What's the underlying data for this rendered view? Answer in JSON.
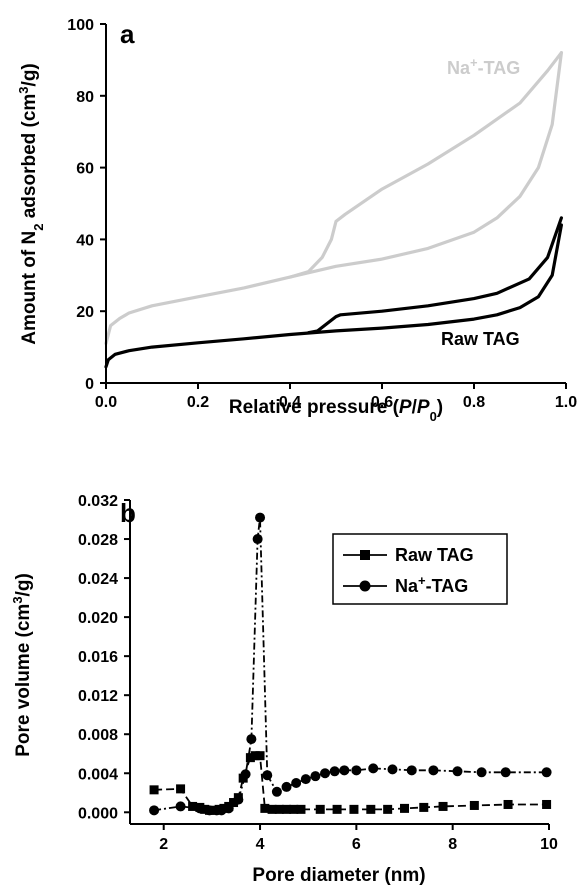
{
  "chart_data": [
    {
      "type": "line",
      "panel_label": "a",
      "xlabel_parts": [
        "Relative pressure (",
        "P",
        "/",
        "P",
        "0",
        ")"
      ],
      "ylabel_parts": [
        "Amount of N",
        "2",
        " adsorbed (cm",
        "3",
        "/g)"
      ],
      "xlim": [
        0.0,
        1.0
      ],
      "ylim": [
        0,
        100
      ],
      "xticks": [
        "0.0",
        "0.2",
        "0.4",
        "0.6",
        "0.8",
        "1.0"
      ],
      "yticks": [
        "0",
        "20",
        "40",
        "60",
        "80",
        "100"
      ],
      "grid": false,
      "series": [
        {
          "name": "Na+-TAG",
          "label_parts": [
            "Na",
            "+",
            "-TAG"
          ],
          "color": "#cccccc",
          "adsorption": [
            [
              0.0,
              11
            ],
            [
              0.01,
              16
            ],
            [
              0.03,
              18
            ],
            [
              0.05,
              19.5
            ],
            [
              0.1,
              21.5
            ],
            [
              0.2,
              24
            ],
            [
              0.3,
              26.5
            ],
            [
              0.4,
              29.5
            ],
            [
              0.45,
              31
            ],
            [
              0.5,
              32.5
            ],
            [
              0.6,
              34.5
            ],
            [
              0.7,
              37.5
            ],
            [
              0.8,
              42
            ],
            [
              0.85,
              46
            ],
            [
              0.9,
              52
            ],
            [
              0.94,
              60
            ],
            [
              0.97,
              72
            ],
            [
              0.99,
              92
            ]
          ],
          "desorption": [
            [
              0.99,
              92
            ],
            [
              0.96,
              87
            ],
            [
              0.9,
              78
            ],
            [
              0.8,
              69
            ],
            [
              0.7,
              61
            ],
            [
              0.6,
              54
            ],
            [
              0.52,
              47
            ],
            [
              0.5,
              45
            ],
            [
              0.49,
              40
            ],
            [
              0.47,
              35
            ],
            [
              0.44,
              31
            ],
            [
              0.4,
              29.5
            ]
          ]
        },
        {
          "name": "Raw TAG",
          "label_parts": [
            "Raw TAG"
          ],
          "color": "#000000",
          "adsorption": [
            [
              0.0,
              4.5
            ],
            [
              0.005,
              6.5
            ],
            [
              0.02,
              8
            ],
            [
              0.05,
              9
            ],
            [
              0.1,
              10
            ],
            [
              0.2,
              11.2
            ],
            [
              0.3,
              12.3
            ],
            [
              0.4,
              13.5
            ],
            [
              0.5,
              14.5
            ],
            [
              0.6,
              15.3
            ],
            [
              0.7,
              16.3
            ],
            [
              0.8,
              17.8
            ],
            [
              0.85,
              19
            ],
            [
              0.9,
              21
            ],
            [
              0.94,
              24
            ],
            [
              0.97,
              30
            ],
            [
              0.99,
              44
            ]
          ],
          "desorption": [
            [
              0.99,
              46
            ],
            [
              0.96,
              35
            ],
            [
              0.92,
              29
            ],
            [
              0.85,
              25
            ],
            [
              0.8,
              23.5
            ],
            [
              0.7,
              21.5
            ],
            [
              0.6,
              20
            ],
            [
              0.51,
              19
            ],
            [
              0.5,
              18.5
            ],
            [
              0.48,
              16.5
            ],
            [
              0.46,
              14.5
            ],
            [
              0.44,
              14
            ]
          ]
        }
      ]
    },
    {
      "type": "line",
      "panel_label": "b",
      "xlabel_parts": [
        "Pore diameter (nm)"
      ],
      "ylabel_parts": [
        "Pore volume (cm",
        "3",
        "/g)"
      ],
      "xlim": [
        1.3,
        10
      ],
      "ylim": [
        -0.0012,
        0.032
      ],
      "xticks": [
        "2",
        "4",
        "6",
        "8",
        "10"
      ],
      "yticks": [
        "0.000",
        "0.004",
        "0.008",
        "0.012",
        "0.016",
        "0.020",
        "0.024",
        "0.028",
        "0.032"
      ],
      "grid": false,
      "legend_position": "top-right",
      "series": [
        {
          "name": "Raw TAG",
          "label_parts": [
            "Raw TAG"
          ],
          "marker": "square",
          "x": [
            1.8,
            2.35,
            2.6,
            2.75,
            2.85,
            2.95,
            3.05,
            3.15,
            3.25,
            3.35,
            3.45,
            3.55,
            3.65,
            3.8,
            3.9,
            4.0,
            4.1,
            4.25,
            4.4,
            4.55,
            4.7,
            4.85,
            5.25,
            5.6,
            5.95,
            6.3,
            6.65,
            7.0,
            7.4,
            7.8,
            8.45,
            9.15,
            9.95
          ],
          "y": [
            0.0023,
            0.0024,
            0.0006,
            0.0005,
            0.0003,
            0.0002,
            0.0002,
            0.0003,
            0.0004,
            0.0006,
            0.001,
            0.0015,
            0.0035,
            0.0056,
            0.0058,
            0.0058,
            0.0004,
            0.0003,
            0.0003,
            0.0003,
            0.0003,
            0.0003,
            0.0003,
            0.0003,
            0.0003,
            0.0003,
            0.0003,
            0.0004,
            0.0005,
            0.0006,
            0.0007,
            0.0008,
            0.0008
          ]
        },
        {
          "name": "Na+-TAG",
          "label_parts": [
            "Na",
            "+",
            "-TAG"
          ],
          "marker": "circle",
          "x": [
            1.8,
            2.35,
            2.75,
            2.95,
            3.1,
            3.2,
            3.35,
            3.55,
            3.7,
            3.82,
            3.95,
            4.0,
            4.15,
            4.35,
            4.55,
            4.75,
            4.95,
            5.15,
            5.35,
            5.55,
            5.75,
            6.0,
            6.35,
            6.75,
            7.15,
            7.6,
            8.1,
            8.6,
            9.1,
            9.95
          ],
          "y": [
            0.0002,
            0.0006,
            0.0004,
            0.0002,
            0.0002,
            0.0002,
            0.0004,
            0.0013,
            0.0039,
            0.0075,
            0.028,
            0.0302,
            0.0038,
            0.0021,
            0.0026,
            0.003,
            0.0034,
            0.0037,
            0.004,
            0.0042,
            0.0043,
            0.0043,
            0.0045,
            0.0044,
            0.0043,
            0.0043,
            0.0042,
            0.0041,
            0.0041,
            0.0041
          ]
        }
      ]
    }
  ]
}
